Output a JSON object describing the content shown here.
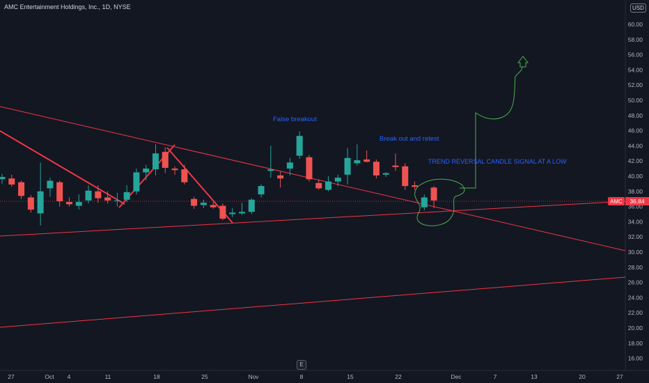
{
  "header": {
    "title": "AMC Entertainment Holdings, Inc., 1D, NYSE",
    "currency": "USD"
  },
  "price_tag": {
    "symbol": "AMC",
    "value": "36.84",
    "color": "#f23645"
  },
  "earnings_marker": {
    "label": "E"
  },
  "annotations": {
    "false_breakout": "False breakout",
    "breakout_retest": "Break out and retest",
    "trend_reversal": "TREND REVERSAL CANDLE SIGNAL AT A LOW"
  },
  "colors": {
    "background": "#131722",
    "up": "#26a69a",
    "down": "#ef5350",
    "trendline": "#f23645",
    "projection": "#4caf50",
    "annotation_text": "#2962ff"
  },
  "chart_data": {
    "type": "candlestick",
    "title": "AMC Entertainment Holdings, Inc., 1D, NYSE",
    "ylim": [
      15,
      62
    ],
    "y_ticks": [
      "16.00",
      "18.00",
      "20.00",
      "22.00",
      "24.00",
      "26.00",
      "28.00",
      "30.00",
      "32.00",
      "34.00",
      "36.00",
      "38.00",
      "40.00",
      "42.00",
      "44.00",
      "46.00",
      "48.00",
      "50.00",
      "52.00",
      "54.00",
      "56.00",
      "58.00",
      "60.00"
    ],
    "x_ticks": [
      "27",
      "Oct",
      "4",
      "11",
      "18",
      "25",
      "Nov",
      "8",
      "15",
      "22",
      "Dec",
      "7",
      "13",
      "20",
      "27"
    ],
    "last_price": 36.84,
    "grid": false,
    "candles": [
      {
        "o": 39.6,
        "h": 40.3,
        "l": 39.0,
        "c": 39.9
      },
      {
        "o": 39.7,
        "h": 40.2,
        "l": 38.6,
        "c": 38.9
      },
      {
        "o": 39.2,
        "h": 39.4,
        "l": 37.0,
        "c": 37.4
      },
      {
        "o": 37.2,
        "h": 37.5,
        "l": 35.2,
        "c": 35.6
      },
      {
        "o": 35.1,
        "h": 41.8,
        "l": 33.5,
        "c": 38.0
      },
      {
        "o": 38.4,
        "h": 39.8,
        "l": 37.3,
        "c": 39.4
      },
      {
        "o": 39.2,
        "h": 39.4,
        "l": 36.0,
        "c": 36.7
      },
      {
        "o": 36.6,
        "h": 37.2,
        "l": 36.0,
        "c": 36.3
      },
      {
        "o": 36.1,
        "h": 37.6,
        "l": 35.6,
        "c": 36.6
      },
      {
        "o": 36.8,
        "h": 38.8,
        "l": 36.4,
        "c": 38.1
      },
      {
        "o": 38.0,
        "h": 38.8,
        "l": 36.5,
        "c": 37.1
      },
      {
        "o": 37.2,
        "h": 38.0,
        "l": 36.4,
        "c": 36.8
      },
      {
        "o": 36.7,
        "h": 37.8,
        "l": 36.0,
        "c": 36.8
      },
      {
        "o": 36.9,
        "h": 38.8,
        "l": 36.6,
        "c": 37.9
      },
      {
        "o": 38.0,
        "h": 41.0,
        "l": 37.6,
        "c": 40.5
      },
      {
        "o": 40.5,
        "h": 41.5,
        "l": 39.5,
        "c": 41.0
      },
      {
        "o": 40.9,
        "h": 44.2,
        "l": 40.1,
        "c": 43.0
      },
      {
        "o": 43.2,
        "h": 43.8,
        "l": 40.4,
        "c": 41.1
      },
      {
        "o": 41.0,
        "h": 41.3,
        "l": 40.2,
        "c": 40.8
      },
      {
        "o": 40.9,
        "h": 41.5,
        "l": 38.9,
        "c": 39.2
      },
      {
        "o": 37.0,
        "h": 37.3,
        "l": 35.7,
        "c": 36.1
      },
      {
        "o": 36.2,
        "h": 36.9,
        "l": 35.8,
        "c": 36.5
      },
      {
        "o": 36.2,
        "h": 36.6,
        "l": 35.7,
        "c": 35.9
      },
      {
        "o": 36.1,
        "h": 36.4,
        "l": 34.2,
        "c": 34.4
      },
      {
        "o": 35.0,
        "h": 35.8,
        "l": 34.6,
        "c": 35.2
      },
      {
        "o": 35.1,
        "h": 36.5,
        "l": 34.9,
        "c": 35.3
      },
      {
        "o": 35.3,
        "h": 37.1,
        "l": 35.0,
        "c": 36.9
      },
      {
        "o": 37.6,
        "h": 38.9,
        "l": 37.2,
        "c": 38.7
      },
      {
        "o": 40.7,
        "h": 44.0,
        "l": 39.8,
        "c": 40.9
      },
      {
        "o": 40.1,
        "h": 40.6,
        "l": 38.5,
        "c": 39.7
      },
      {
        "o": 41.0,
        "h": 42.4,
        "l": 40.1,
        "c": 41.8
      },
      {
        "o": 42.7,
        "h": 45.9,
        "l": 42.3,
        "c": 45.3
      },
      {
        "o": 42.5,
        "h": 42.8,
        "l": 39.3,
        "c": 39.6
      },
      {
        "o": 39.1,
        "h": 39.6,
        "l": 38.2,
        "c": 38.4
      },
      {
        "o": 38.2,
        "h": 40.0,
        "l": 38.0,
        "c": 39.3
      },
      {
        "o": 39.3,
        "h": 40.2,
        "l": 38.7,
        "c": 39.8
      },
      {
        "o": 40.2,
        "h": 43.7,
        "l": 38.9,
        "c": 42.4
      },
      {
        "o": 41.7,
        "h": 44.2,
        "l": 41.4,
        "c": 42.1
      },
      {
        "o": 42.2,
        "h": 43.4,
        "l": 41.8,
        "c": 41.9
      },
      {
        "o": 41.9,
        "h": 42.2,
        "l": 39.7,
        "c": 40.1
      },
      {
        "o": 40.2,
        "h": 40.5,
        "l": 39.9,
        "c": 40.4
      },
      {
        "o": 41.4,
        "h": 43.0,
        "l": 40.7,
        "c": 41.2
      },
      {
        "o": 41.3,
        "h": 41.7,
        "l": 38.2,
        "c": 38.7
      },
      {
        "o": 38.8,
        "h": 39.3,
        "l": 38.2,
        "c": 38.6
      },
      {
        "o": 35.9,
        "h": 37.6,
        "l": 35.5,
        "c": 37.2
      },
      {
        "o": 38.5,
        "h": 38.7,
        "l": 35.8,
        "c": 36.8
      }
    ]
  }
}
